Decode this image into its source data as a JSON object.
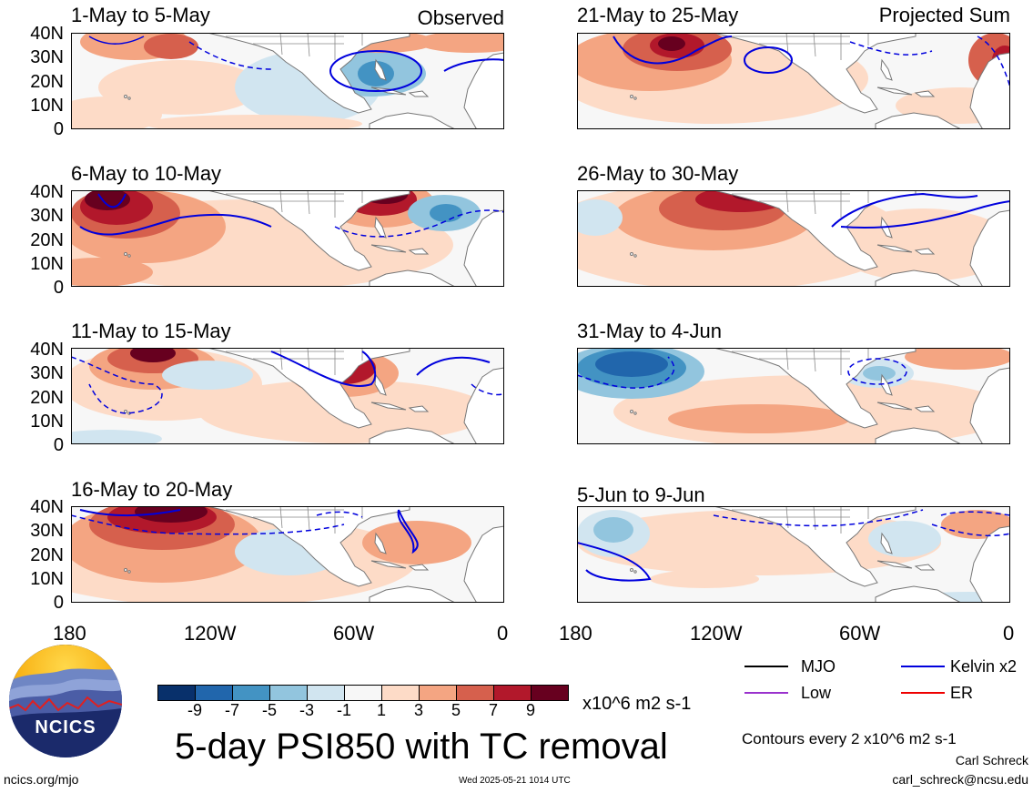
{
  "columns": {
    "left_tag": "Observed",
    "right_tag": "Projected Sum"
  },
  "panels": {
    "left": [
      "1-May to 5-May",
      "6-May to 10-May",
      "11-May to 15-May",
      "16-May to 20-May"
    ],
    "right": [
      "21-May to 25-May",
      "26-May to 30-May",
      "31-May to 4-Jun",
      "5-Jun to 9-Jun"
    ]
  },
  "lat_ticks": [
    "40N",
    "30N",
    "20N",
    "10N",
    "0"
  ],
  "lon_ticks": [
    "180",
    "120W",
    "60W",
    "0"
  ],
  "colorbar": {
    "labels": [
      "-9",
      "-7",
      "-5",
      "-3",
      "-1",
      "1",
      "3",
      "5",
      "7",
      "9"
    ],
    "colors": [
      "#08306b",
      "#2166ac",
      "#4393c3",
      "#92c5de",
      "#d1e5f0",
      "#f7f7f7",
      "#fddbc7",
      "#f4a582",
      "#d6604d",
      "#b2182b",
      "#67001f"
    ],
    "units": "x10^6 m2 s-1"
  },
  "legend": {
    "mjo": "MJO",
    "kelvin": "Kelvin x2",
    "low": "Low",
    "er": "ER",
    "colors": {
      "mjo": "#000000",
      "kelvin": "#0000dd",
      "low": "#9a32cd",
      "er": "#ee0000"
    },
    "contours_note": "Contours every 2 x10^6 m2 s-1"
  },
  "title": "5-day PSI850 with TC removal",
  "logo": {
    "text": "NCICS"
  },
  "footer": {
    "url": "ncics.org/mjo",
    "timestamp": "Wed 2025-05-21 1014 UTC",
    "author": "Carl Schreck",
    "email": "carl_schreck@ncsu.edu"
  }
}
